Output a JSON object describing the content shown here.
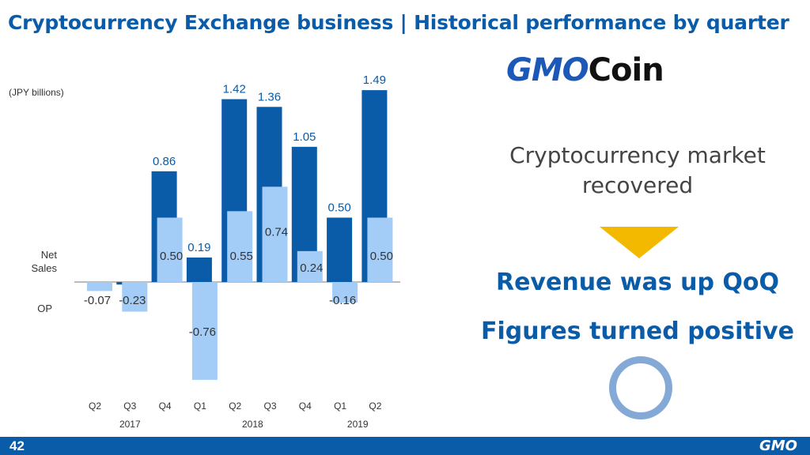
{
  "title": "Cryptocurrency Exchange business | Historical performance by quarter",
  "unit_label": "(JPY billions)",
  "row_labels": {
    "net_sales": "Net\nSales",
    "op": "OP"
  },
  "logo": {
    "gmo": "GMO",
    "coin": "Coin"
  },
  "message": "Cryptocurrency market recovered",
  "emphasis": [
    "Revenue was up QoQ",
    "Figures turned positive"
  ],
  "page_number": "42",
  "footer_logo": "GMO",
  "colors": {
    "net_sales": "#0a5ba8",
    "op": "#a3ccf7",
    "title": "#0a5ba8",
    "arrow": "#f2b900",
    "circle": "#84a9d6"
  },
  "chart_data": {
    "type": "bar",
    "categories": [
      "Q2",
      "Q3",
      "Q4",
      "Q1",
      "Q2",
      "Q3",
      "Q4",
      "Q1",
      "Q2"
    ],
    "year_groups": [
      {
        "year": "2017",
        "quarters": [
          "Q2",
          "Q3",
          "Q4"
        ]
      },
      {
        "year": "2018",
        "quarters": [
          "Q1",
          "Q2",
          "Q3",
          "Q4"
        ]
      },
      {
        "year": "2019",
        "quarters": [
          "Q1",
          "Q2"
        ]
      }
    ],
    "series": [
      {
        "name": "Net Sales",
        "values": [
          null,
          -0.02,
          0.86,
          0.19,
          1.42,
          1.36,
          1.05,
          0.5,
          1.49
        ],
        "labels": [
          "",
          "",
          "0.86",
          "0.19",
          "1.42",
          "1.36",
          "1.05",
          "0.50",
          "1.49"
        ]
      },
      {
        "name": "OP",
        "values": [
          -0.07,
          -0.23,
          0.5,
          -0.76,
          0.55,
          0.74,
          0.24,
          -0.16,
          0.5
        ],
        "labels": [
          "-0.07",
          "-0.23",
          "0.50",
          "-0.76",
          "0.55",
          "0.74",
          "0.24",
          "-0.16",
          "0.50"
        ]
      }
    ],
    "ylim": [
      -0.8,
      1.6
    ],
    "grid": false,
    "legend": "none"
  }
}
